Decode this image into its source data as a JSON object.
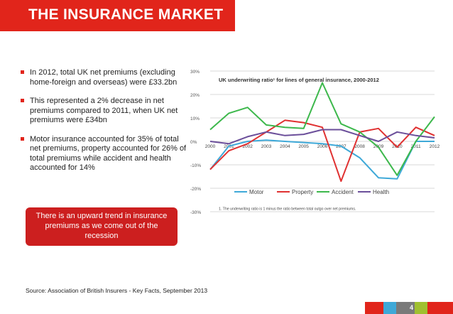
{
  "slide": {
    "title": "THE INSURANCE MARKET",
    "bullets": [
      "In 2012, total UK net premiums (excluding home-foreign and overseas) were £33.2bn",
      "This represented a 2% decrease in net premiums compared to 2011, when UK net premiums were £34bn",
      "Motor insurance accounted for 35% of total net premiums, property accounted for 26% of total premiums while accident and health accounted for 14%"
    ],
    "callout": "There is an upward trend in insurance premiums as we come out of the recession",
    "source": "Source: Association of British Insurers - Key Facts, September 2013",
    "page_number": "4"
  },
  "colors": {
    "accent": "#e1251b",
    "motor": "#3fa9d8",
    "property": "#e03131",
    "accident": "#3db84c",
    "health": "#6b4f9a",
    "footer": [
      "#e1251b",
      "#3fa9d8",
      "#7a7a7a",
      "#a0c030",
      "#e1251b"
    ]
  },
  "chart_data": {
    "type": "line",
    "title": "UK underwriting ratio¹ for lines of general insurance, 2000-2012",
    "note": "1. The underwriting ratio is 1 minus the ratio between total outgo over net premiums.",
    "x": [
      "2000",
      "2001",
      "2002",
      "2003",
      "2004",
      "2005",
      "2006",
      "2007",
      "2008",
      "2009",
      "2010",
      "2011",
      "2012"
    ],
    "ylim": [
      -30,
      30
    ],
    "yticks": [
      "30%",
      "20%",
      "10%",
      "0%",
      "-10%",
      "-20%",
      "-30%"
    ],
    "legend_position": "bottom",
    "series": [
      {
        "name": "Motor",
        "values": [
          -12,
          -2,
          0,
          0.5,
          0,
          -0.5,
          -1,
          -2,
          -7,
          -15.5,
          -16,
          0,
          0
        ]
      },
      {
        "name": "Property",
        "values": [
          -12,
          -4,
          -1,
          4,
          9,
          8,
          6,
          -17,
          4,
          5.5,
          -2.5,
          6,
          2.5
        ]
      },
      {
        "name": "Accident",
        "values": [
          5,
          12,
          14.5,
          7,
          6,
          5.5,
          25,
          7.5,
          4,
          -2.5,
          -14.5,
          0,
          10.5
        ]
      },
      {
        "name": "Health",
        "values": [
          0,
          -1,
          2,
          4,
          2.5,
          3,
          5,
          5,
          2.5,
          0,
          4,
          2.5,
          1.5
        ]
      }
    ]
  }
}
